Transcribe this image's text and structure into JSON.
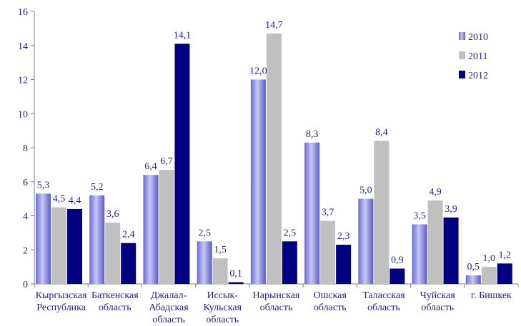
{
  "chart_data": {
    "type": "bar",
    "categories": [
      [
        "Кыргызская",
        "Республика"
      ],
      [
        "Баткенская",
        "область"
      ],
      [
        "Джалал-",
        "Абадская",
        "область"
      ],
      [
        "Иссык-",
        "Кульская",
        "область"
      ],
      [
        "Нарынская",
        "область"
      ],
      [
        "Ошская",
        "область"
      ],
      [
        "Таласская",
        "область"
      ],
      [
        "Чуйская",
        "область"
      ],
      [
        "г. Бишкек"
      ]
    ],
    "series": [
      {
        "name": "2010",
        "color": "#8b8be0",
        "values": [
          5.3,
          5.2,
          6.4,
          2.5,
          12.0,
          8.3,
          5.0,
          3.5,
          0.5
        ],
        "labels": [
          "5,3",
          "5,2",
          "6,4",
          "2,5",
          "12,0",
          "8,3",
          "5,0",
          "3,5",
          "0,5"
        ]
      },
      {
        "name": "2011",
        "color": "#c0c0c0",
        "values": [
          4.5,
          3.6,
          6.7,
          1.5,
          14.7,
          3.7,
          8.4,
          4.9,
          1.0
        ],
        "labels": [
          "4,5",
          "3,6",
          "6,7",
          "1,5",
          "14,7",
          "3,7",
          "8,4",
          "4,9",
          "1,0"
        ]
      },
      {
        "name": "2012",
        "color": "#000080",
        "values": [
          4.4,
          2.4,
          14.1,
          0.1,
          2.5,
          2.3,
          0.9,
          3.9,
          1.2
        ],
        "labels": [
          "4,4",
          "2,4",
          "14,1",
          "0,1",
          "2,5",
          "2,3",
          "0,9",
          "3,9",
          "1,2"
        ]
      }
    ],
    "y_ticks": [
      "0",
      "2",
      "4",
      "6",
      "8",
      "10",
      "12",
      "14",
      "16"
    ],
    "ylim": [
      0,
      16
    ],
    "legend_position": "top-right",
    "grid": false
  }
}
